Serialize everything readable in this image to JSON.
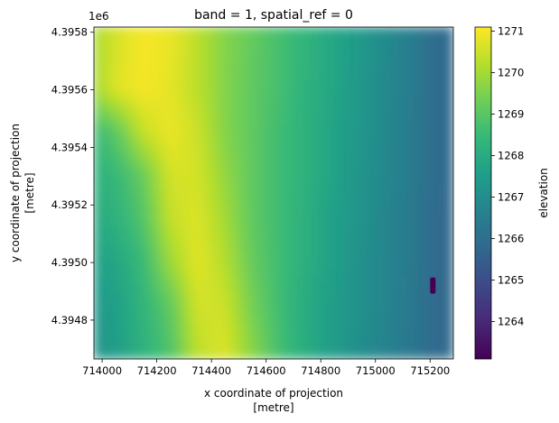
{
  "chart_data": {
    "type": "heatmap",
    "title": "band = 1, spatial_ref = 0",
    "xlabel": "x coordinate of projection",
    "xlabel_unit": "[metre]",
    "ylabel": "y coordinate of projection",
    "ylabel_unit": "[metre]",
    "y_offset_label": "1e6",
    "xlim": [
      713970,
      715285
    ],
    "ylim": [
      4.394665,
      4.395818
    ],
    "x_ticks": [
      714000,
      714200,
      714400,
      714600,
      714800,
      715000,
      715200
    ],
    "x_tick_labels": [
      "714000",
      "714200",
      "714400",
      "714600",
      "714800",
      "715000",
      "715200"
    ],
    "y_ticks": [
      4.3948,
      4.395,
      4.3952,
      4.3954,
      4.3956,
      4.3958
    ],
    "y_tick_labels": [
      "4.3948",
      "4.3950",
      "4.3952",
      "4.3954",
      "4.3956",
      "4.3958"
    ],
    "colorbar": {
      "label": "elevation",
      "colormap": "viridis",
      "range": [
        1263.1,
        1271.1
      ],
      "ticks": [
        1264,
        1265,
        1266,
        1267,
        1268,
        1269,
        1270,
        1271
      ],
      "tick_labels": [
        "1264",
        "1265",
        "1266",
        "1267",
        "1268",
        "1269",
        "1270",
        "1271"
      ]
    },
    "elevation_x": [
      713970,
      714050,
      714150,
      714250,
      714350,
      714450,
      714550,
      714650,
      714750,
      714850,
      714950,
      715050,
      715150,
      715200,
      715285
    ],
    "elevation_grid": [
      {
        "y": 4.395818,
        "values": [
          1270.0,
          1270.6,
          1271.0,
          1270.9,
          1270.3,
          1269.6,
          1269.2,
          1268.7,
          1268.3,
          1267.8,
          1267.4,
          1266.9,
          1266.4,
          1266.0,
          1265.8
        ]
      },
      {
        "y": 4.3956,
        "values": [
          1269.9,
          1270.7,
          1271.0,
          1270.8,
          1270.3,
          1269.6,
          1269.1,
          1268.7,
          1268.2,
          1267.8,
          1267.3,
          1266.8,
          1266.4,
          1266.0,
          1265.8
        ]
      },
      {
        "y": 4.39545,
        "values": [
          1268.5,
          1269.0,
          1270.4,
          1270.9,
          1270.5,
          1269.6,
          1269.1,
          1268.6,
          1268.2,
          1267.7,
          1267.3,
          1266.8,
          1266.3,
          1266.0,
          1265.8
        ]
      },
      {
        "y": 4.3953,
        "values": [
          1268.2,
          1268.4,
          1269.2,
          1270.6,
          1270.6,
          1269.8,
          1269.1,
          1268.6,
          1268.2,
          1267.7,
          1267.2,
          1266.8,
          1266.3,
          1266.0,
          1265.8
        ]
      },
      {
        "y": 4.39515,
        "values": [
          1267.9,
          1268.2,
          1268.9,
          1270.4,
          1270.7,
          1270.0,
          1269.1,
          1268.6,
          1268.1,
          1267.6,
          1267.2,
          1266.7,
          1266.3,
          1265.9,
          1265.8
        ]
      },
      {
        "y": 4.395,
        "values": [
          1267.6,
          1267.8,
          1268.5,
          1269.9,
          1270.8,
          1270.2,
          1269.2,
          1268.6,
          1268.1,
          1267.6,
          1267.1,
          1266.7,
          1266.3,
          1265.9,
          1265.8
        ]
      },
      {
        "y": 4.39485,
        "values": [
          1267.3,
          1267.6,
          1268.3,
          1269.1,
          1270.6,
          1270.5,
          1269.4,
          1268.6,
          1268.0,
          1267.5,
          1267.1,
          1266.7,
          1266.2,
          1265.9,
          1265.8
        ]
      },
      {
        "y": 4.394665,
        "values": [
          1267.2,
          1267.5,
          1268.2,
          1268.8,
          1270.3,
          1270.7,
          1269.7,
          1268.7,
          1268.0,
          1267.5,
          1267.0,
          1266.6,
          1266.2,
          1265.9,
          1265.8
        ]
      }
    ],
    "anomaly": {
      "x": 715210,
      "y": 4.39492,
      "value": 1263.1
    }
  }
}
